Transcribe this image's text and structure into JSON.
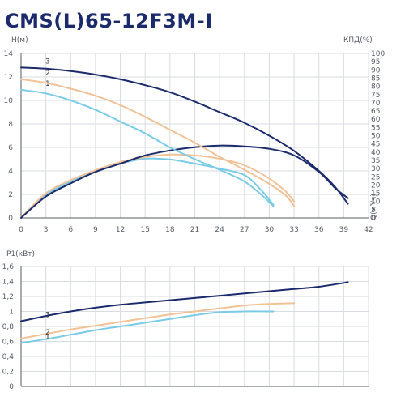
{
  "title": "CMS(L)65-12F3M-I",
  "colors": {
    "c1": "#79cbe6",
    "c2": "#f0c297",
    "c3": "#1b2a6b",
    "grid": "#d8dbe0",
    "axis": "#555b66"
  },
  "chart_data": [
    {
      "type": "line",
      "title": "",
      "xlabel": "Q(м³/ч)",
      "ylabel_left": "H(м)",
      "ylabel_right": "КПД(%)",
      "xlim": [
        0,
        42
      ],
      "ylim_left": [
        0,
        14
      ],
      "ylim_right": [
        0,
        100
      ],
      "xticks": [
        "0",
        "3",
        "6",
        "9",
        "12",
        "15",
        "18",
        "21",
        "24",
        "27",
        "30",
        "33",
        "36",
        "39",
        "42"
      ],
      "yticks_left": [
        "0",
        "2",
        "4",
        "6",
        "8",
        "10",
        "12",
        "14"
      ],
      "yticks_right": [
        "0",
        "5",
        "10",
        "15",
        "20",
        "25",
        "30",
        "35",
        "40",
        "45",
        "50",
        "55",
        "60",
        "65",
        "70",
        "75",
        "80",
        "85",
        "90",
        "95",
        "100"
      ],
      "grid": true,
      "series": [
        {
          "name": "1",
          "axis": "left",
          "curve": "H",
          "color": "#79cbe6",
          "x": [
            0,
            3,
            6,
            9,
            12,
            15,
            18,
            21,
            24,
            27,
            29,
            30.5
          ],
          "y": [
            10.9,
            10.6,
            10.0,
            9.2,
            8.2,
            7.2,
            6.0,
            5.0,
            4.1,
            3.1,
            2.0,
            1.0
          ]
        },
        {
          "name": "2",
          "axis": "left",
          "curve": "H",
          "color": "#f0c297",
          "x": [
            0,
            3,
            6,
            9,
            12,
            15,
            18,
            21,
            24,
            27,
            30,
            32,
            33
          ],
          "y": [
            11.8,
            11.5,
            11.0,
            10.4,
            9.6,
            8.6,
            7.5,
            6.4,
            5.2,
            4.1,
            2.9,
            1.9,
            1.0
          ]
        },
        {
          "name": "3",
          "axis": "left",
          "curve": "H",
          "color": "#1b2a6b",
          "x": [
            0,
            3,
            6,
            9,
            12,
            15,
            18,
            21,
            24,
            27,
            30,
            33,
            36,
            38,
            39.5
          ],
          "y": [
            12.8,
            12.7,
            12.5,
            12.2,
            11.8,
            11.3,
            10.7,
            9.9,
            9.0,
            8.1,
            7.0,
            5.7,
            4.0,
            2.6,
            1.2
          ]
        },
        {
          "axis": "right",
          "curve": "efficiency",
          "color": "#79cbe6",
          "x": [
            0,
            3,
            6,
            9,
            12,
            15,
            18,
            21,
            24,
            27,
            29,
            30.5
          ],
          "y": [
            0,
            14,
            22,
            28,
            33,
            36,
            35.5,
            33,
            30,
            26,
            17,
            8
          ]
        },
        {
          "axis": "right",
          "curve": "efficiency",
          "color": "#f0c297",
          "x": [
            0,
            3,
            6,
            9,
            12,
            15,
            18,
            21,
            24,
            27,
            30,
            32,
            33
          ],
          "y": [
            0,
            15,
            23,
            29,
            34,
            37,
            38.5,
            38,
            36,
            32,
            24,
            16,
            10
          ]
        },
        {
          "axis": "right",
          "curve": "efficiency",
          "color": "#1b2a6b",
          "x": [
            0,
            3,
            6,
            9,
            12,
            15,
            18,
            21,
            24,
            27,
            30,
            33,
            36,
            38,
            39.5
          ],
          "y": [
            0,
            13,
            21,
            28,
            33,
            38,
            41,
            43,
            44,
            43.5,
            42,
            38,
            28,
            18,
            12
          ]
        }
      ]
    },
    {
      "type": "line",
      "title": "",
      "xlabel": "",
      "ylabel": "P1(кВт)",
      "xlim": [
        0,
        42
      ],
      "ylim": [
        0,
        1.6
      ],
      "yticks": [
        "0",
        "0,2",
        "0,4",
        "0,6",
        "0,8",
        "1",
        "1,2",
        "1,4",
        "1,6"
      ],
      "grid": true,
      "series": [
        {
          "name": "1",
          "color": "#79cbe6",
          "x": [
            0,
            3,
            6,
            9,
            12,
            15,
            18,
            21,
            24,
            27,
            30.5
          ],
          "y": [
            0.58,
            0.63,
            0.69,
            0.75,
            0.8,
            0.85,
            0.9,
            0.95,
            0.99,
            1.0,
            1.0
          ]
        },
        {
          "name": "2",
          "color": "#f0c297",
          "x": [
            0,
            3,
            6,
            9,
            12,
            15,
            18,
            21,
            24,
            27,
            30,
            33
          ],
          "y": [
            0.64,
            0.7,
            0.76,
            0.81,
            0.86,
            0.91,
            0.96,
            1.0,
            1.04,
            1.08,
            1.1,
            1.11
          ]
        },
        {
          "name": "3",
          "color": "#1b2a6b",
          "x": [
            0,
            3,
            6,
            9,
            12,
            15,
            18,
            21,
            24,
            27,
            30,
            33,
            36,
            39.5
          ],
          "y": [
            0.87,
            0.94,
            1.0,
            1.05,
            1.09,
            1.12,
            1.15,
            1.18,
            1.21,
            1.24,
            1.27,
            1.3,
            1.33,
            1.39
          ]
        }
      ]
    }
  ]
}
